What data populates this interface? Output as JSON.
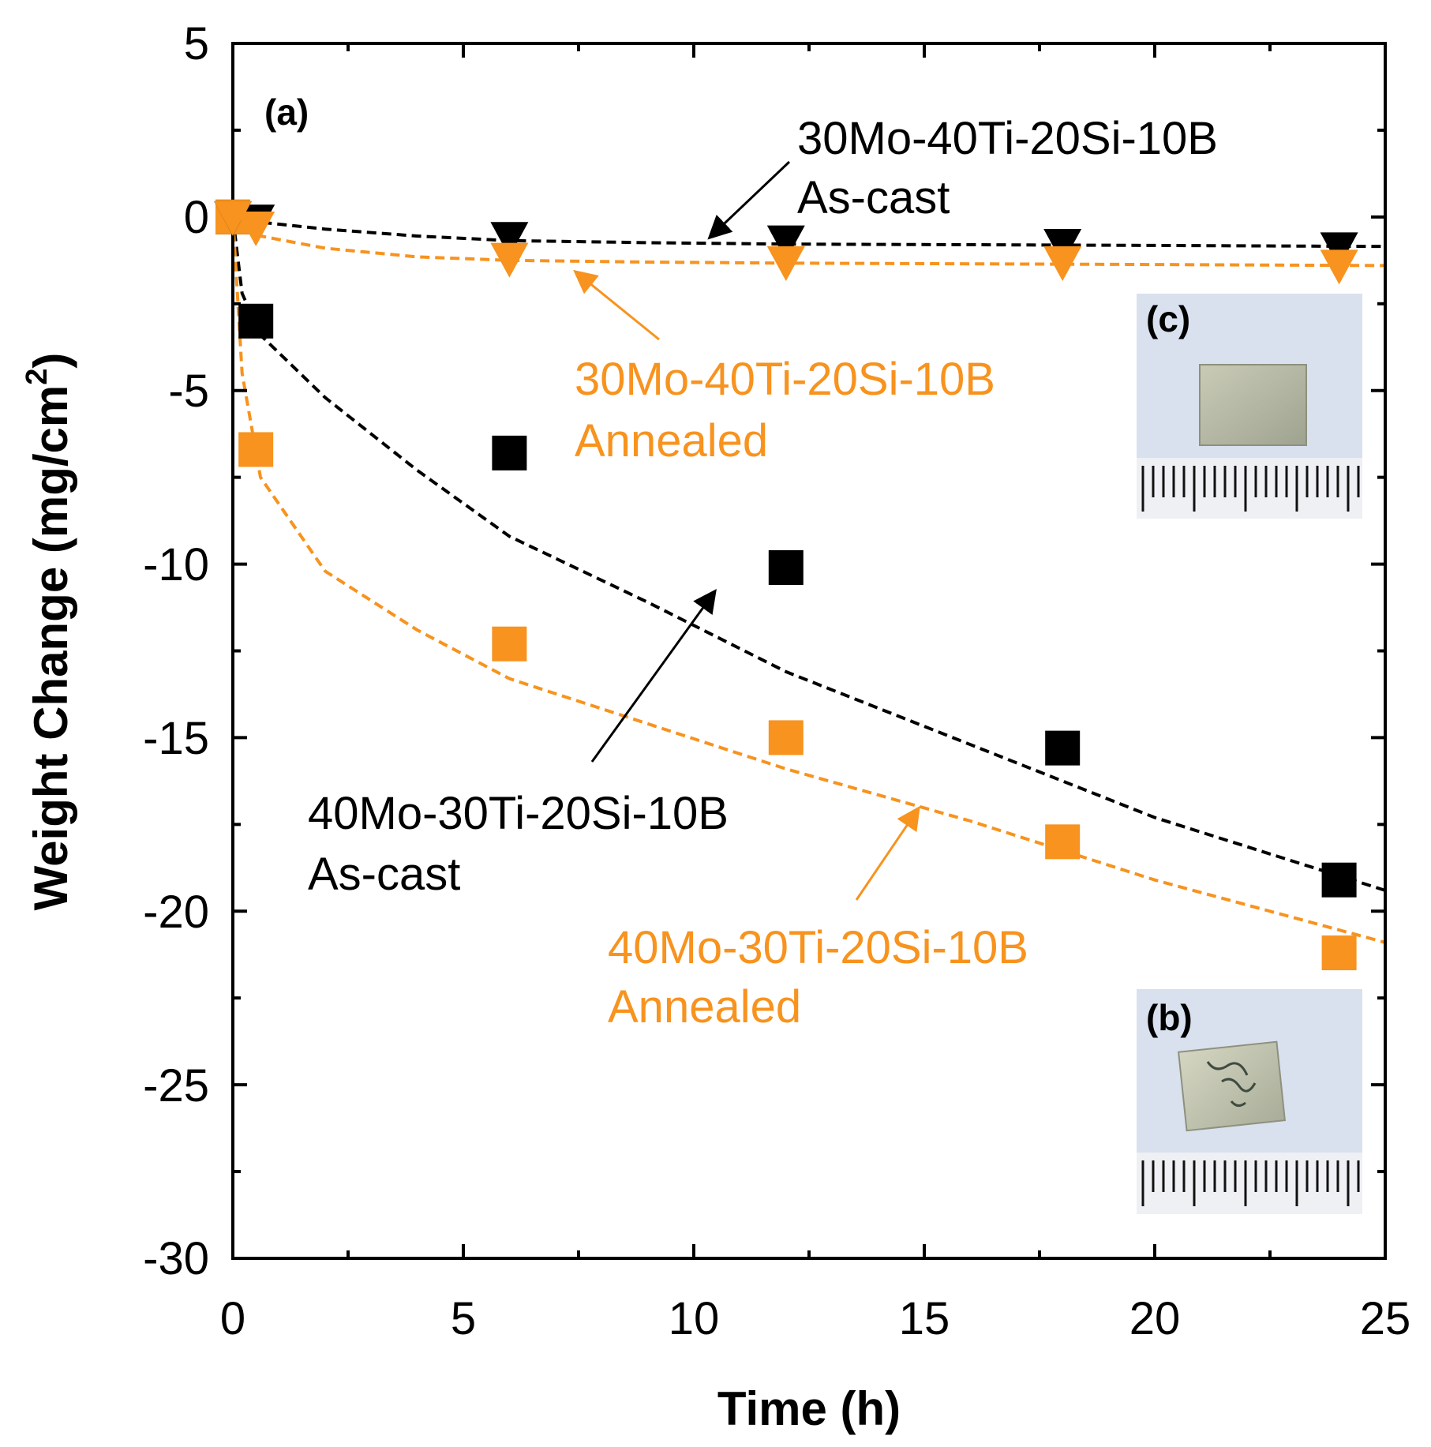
{
  "chart_data": {
    "type": "scatter",
    "title": "",
    "xlabel": "Time (h)",
    "ylabel_main": "Weight Change (mg/cm",
    "ylabel_sup": "2",
    "ylabel_close": ")",
    "xlim": [
      0,
      25
    ],
    "ylim": [
      -30,
      5
    ],
    "xticks": [
      "0",
      "5",
      "10",
      "15",
      "20",
      "25"
    ],
    "yticks": [
      "5",
      "0",
      "-5",
      "-10",
      "-15",
      "-20",
      "-25",
      "-30"
    ],
    "panel_label": "(a)",
    "grid": false,
    "series": [
      {
        "name": "30Mo-40Ti-20Si-10B As-cast",
        "color": "#000000",
        "marker": "triangle-down",
        "x": [
          0,
          0.5,
          6,
          12,
          18,
          24
        ],
        "y": [
          0,
          -0.1,
          -0.6,
          -0.7,
          -0.8,
          -0.9
        ],
        "fit_y": [
          0,
          -0.05,
          -0.15,
          -0.35,
          -0.55,
          -0.68,
          -0.74,
          -0.78,
          -0.8,
          -0.82,
          -0.85
        ]
      },
      {
        "name": "30Mo-40Ti-20Si-10B Annealed",
        "color": "#f7931e",
        "marker": "triangle-down",
        "x": [
          0,
          0.5,
          6,
          12,
          18,
          24
        ],
        "y": [
          0,
          -0.3,
          -1.2,
          -1.3,
          -1.3,
          -1.4
        ],
        "fit_y": [
          0,
          -0.25,
          -0.55,
          -0.9,
          -1.15,
          -1.25,
          -1.3,
          -1.33,
          -1.35,
          -1.37,
          -1.4
        ]
      },
      {
        "name": "40Mo-30Ti-20Si-10B As-cast",
        "color": "#000000",
        "marker": "square",
        "x": [
          0,
          0.5,
          6,
          12,
          18,
          24
        ],
        "y": [
          0,
          -3.0,
          -6.8,
          -10.1,
          -15.3,
          -19.1
        ],
        "fit_y": [
          0,
          -2.2,
          -3.4,
          -5.2,
          -7.3,
          -9.2,
          -11.1,
          -13.1,
          -15.2,
          -17.3,
          -19.4
        ]
      },
      {
        "name": "40Mo-30Ti-20Si-10B Annealed",
        "color": "#f7931e",
        "marker": "square",
        "x": [
          0,
          0.5,
          6,
          12,
          18,
          24
        ],
        "y": [
          0,
          -6.7,
          -12.3,
          -15.0,
          -18.0,
          -21.2
        ],
        "fit_y": [
          0,
          -4.5,
          -7.5,
          -10.2,
          -11.9,
          -13.3,
          -14.6,
          -15.9,
          -17.4,
          -19.1,
          -20.9
        ]
      }
    ],
    "fit_x": [
      0,
      0.2,
      0.6,
      2,
      4,
      6,
      9,
      12,
      16,
      20,
      25
    ],
    "annotations": [
      {
        "line1": "30Mo-40Ti-20Si-10B",
        "line2": "As-cast",
        "color": "#000000"
      },
      {
        "line1": "30Mo-40Ti-20Si-10B",
        "line2": "Annealed",
        "color": "#f7931e"
      },
      {
        "line1": "40Mo-30Ti-20Si-10B",
        "line2": "As-cast",
        "color": "#000000"
      },
      {
        "line1": "40Mo-30Ti-20Si-10B",
        "line2": "Annealed",
        "color": "#f7931e"
      }
    ],
    "insets": [
      {
        "label": "(c)"
      },
      {
        "label": "(b)"
      }
    ]
  }
}
